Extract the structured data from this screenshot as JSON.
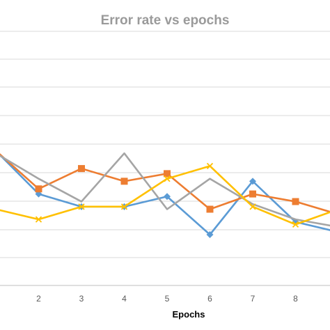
{
  "chart_data": {
    "type": "line",
    "title": "Error rate vs epochs",
    "xlabel": "Epochs",
    "ylabel": "",
    "x": [
      1,
      2,
      3,
      4,
      5,
      6,
      7,
      8,
      9
    ],
    "x_tick_labels": [
      "2",
      "3",
      "4",
      "5",
      "6",
      "7",
      "8"
    ],
    "y_range": [
      0,
      1
    ],
    "grid": true,
    "series": [
      {
        "color": "#5b9bd5",
        "marker": "diamond",
        "values": [
          0.53,
          0.36,
          0.31,
          0.31,
          0.35,
          0.2,
          0.41,
          0.25,
          0.21
        ]
      },
      {
        "color": "#ed7d31",
        "marker": "square",
        "values": [
          0.53,
          0.38,
          0.46,
          0.41,
          0.44,
          0.3,
          0.36,
          0.33,
          0.28
        ]
      },
      {
        "color": "#a5a5a5",
        "marker": "line",
        "values": [
          0.52,
          0.42,
          0.33,
          0.52,
          0.3,
          0.42,
          0.32,
          0.26,
          0.23
        ]
      },
      {
        "color": "#ffc000",
        "marker": "x",
        "values": [
          0.3,
          0.26,
          0.31,
          0.31,
          0.42,
          0.47,
          0.31,
          0.24,
          0.3
        ]
      }
    ]
  }
}
